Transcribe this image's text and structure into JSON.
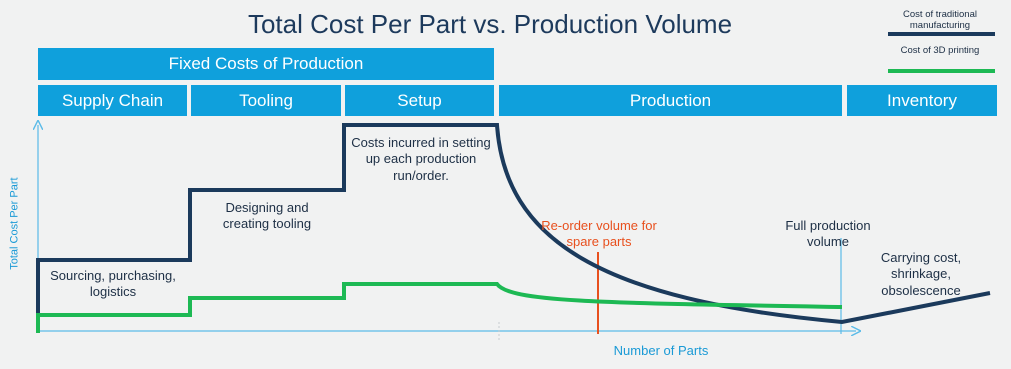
{
  "title": "Total Cost Per Part vs. Production Volume",
  "legend": [
    {
      "label": "Cost of traditional manufacturing",
      "color": "#1b3a5c"
    },
    {
      "label": "Cost of 3D printing",
      "color": "#1db954"
    }
  ],
  "header_bar": "Fixed Costs of Production",
  "phases": [
    "Supply Chain",
    "Tooling",
    "Setup",
    "Production",
    "Inventory"
  ],
  "axes": {
    "y_label": "Total Cost Per Part",
    "x_label": "Number of Parts"
  },
  "annotations": [
    "Sourcing, purchasing, logistics",
    "Designing and creating tooling",
    "Costs incurred in setting up each production run/order.",
    "Re-order volume for spare parts",
    "Full production volume",
    "Carrying cost, shrinkage, obsolescence"
  ]
}
